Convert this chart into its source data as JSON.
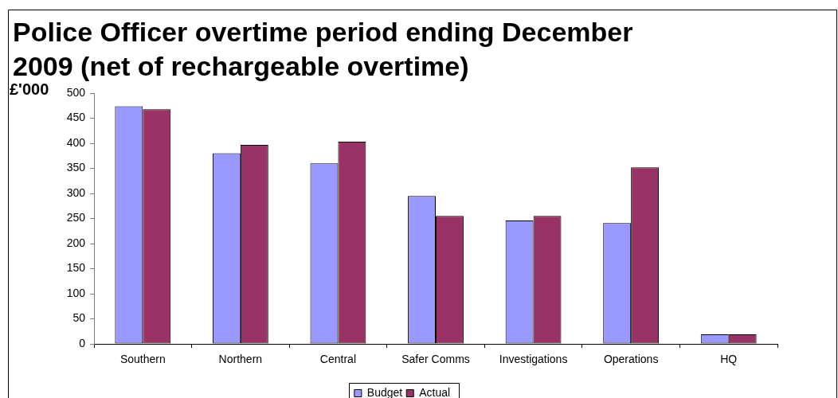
{
  "chart_data": {
    "type": "bar",
    "title": "Police Officer overtime period ending December 2009 (net of rechargeable overtime)",
    "ylabel": "£'000",
    "categories": [
      "Southern",
      "Northern",
      "Central",
      "Safer Comms",
      "Investigations",
      "Operations",
      "HQ"
    ],
    "series": [
      {
        "name": "Budget",
        "color": "#9999ff",
        "values": [
          474,
          380,
          360,
          295,
          246,
          241,
          19
        ]
      },
      {
        "name": "Actual",
        "color": "#993366",
        "values": [
          468,
          397,
          403,
          255,
          255,
          352,
          19
        ]
      }
    ],
    "ylim": [
      0,
      500
    ],
    "yticks": [
      0,
      50,
      100,
      150,
      200,
      250,
      300,
      350,
      400,
      450,
      500
    ],
    "legend": "bottom"
  }
}
